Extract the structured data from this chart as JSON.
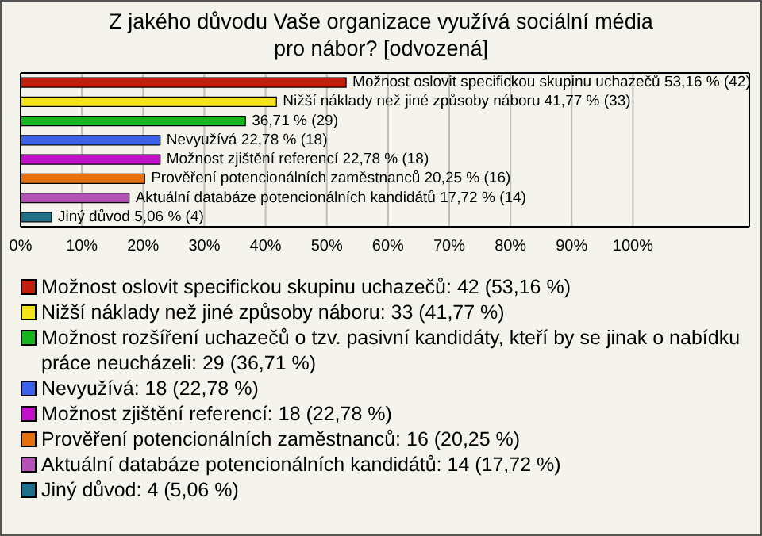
{
  "chart_data": {
    "type": "bar",
    "orientation": "horizontal",
    "stacked": true,
    "title": "Z jakého důvodu Vaše organizace využívá sociální média pro nábor? [odvozená]",
    "categories": [
      null,
      null,
      null,
      null,
      null,
      null,
      null,
      null
    ],
    "series": [
      {
        "name": "Možnost oslovit specifickou skupinu uchazečů: 42 (53,16 %)",
        "color": "#c41e0e",
        "values": [
          53.16,
          null,
          null,
          null,
          null,
          null,
          null,
          null
        ],
        "value_labels": [
          "Možnost oslovit specifickou skupinu uchazečů 53,16 % (42)",
          null,
          null,
          null,
          null,
          null,
          null,
          null
        ]
      },
      {
        "name": "Nižší náklady než jiné způsoby náboru: 33 (41,77 %)",
        "color": "#f5e31a",
        "values": [
          null,
          41.77,
          null,
          null,
          null,
          null,
          null,
          null
        ],
        "value_labels": [
          null,
          "Nižší náklady než jiné způsoby náboru 41,77 % (33)",
          null,
          null,
          null,
          null,
          null,
          null
        ]
      },
      {
        "name": "Možnost rozšíření uchazečů o tzv. pasivní kandidáty, kteří by se jinak o nabídku práce neucházeli: 29 (36,71 %)",
        "color": "#17b51d",
        "values": [
          null,
          null,
          36.71,
          null,
          null,
          null,
          null,
          null
        ],
        "value_labels": [
          null,
          null,
          "36,71 % (29)",
          null,
          null,
          null,
          null,
          null
        ]
      },
      {
        "name": "Nevyužívá: 18 (22,78 %)",
        "color": "#3b62e8",
        "values": [
          null,
          null,
          null,
          22.78,
          null,
          null,
          null,
          null
        ],
        "value_labels": [
          null,
          null,
          null,
          "Nevyužívá 22,78 % (18)",
          null,
          null,
          null,
          null
        ]
      },
      {
        "name": "Možnost zjištění referencí: 18 (22,78 %)",
        "color": "#c211c9",
        "values": [
          null,
          null,
          null,
          null,
          22.78,
          null,
          null,
          null
        ],
        "value_labels": [
          null,
          null,
          null,
          null,
          "Možnost zjištění referencí 22,78 % (18)",
          null,
          null,
          null
        ]
      },
      {
        "name": "Prověření potencionálních zaměstnanců: 16 (20,25 %)",
        "color": "#e6700e",
        "values": [
          null,
          null,
          null,
          null,
          null,
          20.25,
          null,
          null
        ],
        "value_labels": [
          null,
          null,
          null,
          null,
          null,
          "Prověření potencionálních zaměstnanců 20,25 % (16)",
          null,
          null
        ]
      },
      {
        "name": "Aktuální databáze potencionálních kandidátů: 14 (17,72 %)",
        "color": "#b452b7",
        "values": [
          null,
          null,
          null,
          null,
          null,
          null,
          17.72,
          null
        ],
        "value_labels": [
          null,
          null,
          null,
          null,
          null,
          null,
          "Aktuální databáze potencionálních kandidátů 17,72 % (14)",
          null
        ]
      },
      {
        "name": "Jiný důvod: 4 (5,06 %)",
        "color": "#1d6f8a",
        "values": [
          null,
          null,
          null,
          null,
          null,
          null,
          null,
          5.06
        ],
        "value_labels": [
          null,
          null,
          null,
          null,
          null,
          null,
          null,
          "Jiný důvod 5,06 % (4)"
        ]
      }
    ],
    "xlim": [
      0,
      119
    ],
    "xticks": [
      {
        "value": 0,
        "label": "0%"
      },
      {
        "value": 10,
        "label": "10%"
      },
      {
        "value": 20,
        "label": "20%"
      },
      {
        "value": 30,
        "label": "30%"
      },
      {
        "value": 40,
        "label": "40%"
      },
      {
        "value": 50,
        "label": "50%"
      },
      {
        "value": 60,
        "label": "60%"
      },
      {
        "value": 70,
        "label": "70%"
      },
      {
        "value": 80,
        "label": "80%"
      },
      {
        "value": 90,
        "label": "90%"
      },
      {
        "value": 100,
        "label": "100%"
      }
    ],
    "grid": "x",
    "legend": "bottom",
    "tick_labels": "x"
  }
}
